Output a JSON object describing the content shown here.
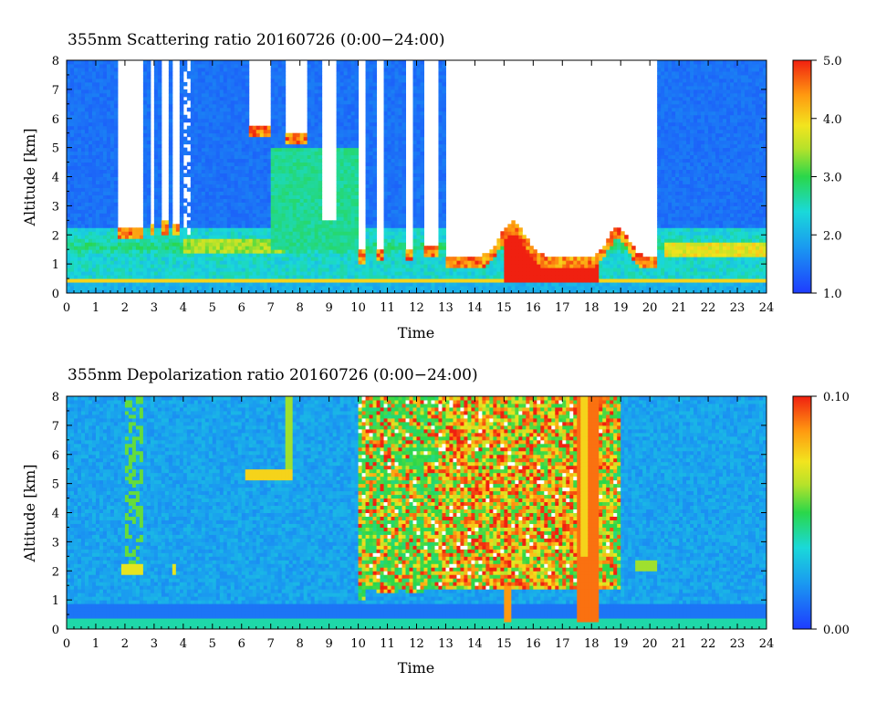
{
  "chart_data": [
    {
      "type": "heatmap",
      "title": "355nm Scattering ratio  20160726 (0:00−24:00)",
      "xlabel": "Time",
      "ylabel": "Altitude [km]",
      "xlim": [
        0,
        24
      ],
      "ylim": [
        0,
        8
      ],
      "x_ticks": [
        "0",
        "1",
        "2",
        "3",
        "4",
        "5",
        "6",
        "7",
        "8",
        "9",
        "10",
        "11",
        "12",
        "13",
        "14",
        "15",
        "16",
        "17",
        "18",
        "19",
        "20",
        "21",
        "22",
        "23",
        "24"
      ],
      "y_ticks": [
        "0",
        "1",
        "2",
        "3",
        "4",
        "5",
        "6",
        "7",
        "8"
      ],
      "colorbar": {
        "min": 1.0,
        "max": 5.0,
        "ticks": [
          "1.0",
          "2.0",
          "3.0",
          "4.0",
          "5.0"
        ]
      },
      "missing_data_color": "#ffffff",
      "regions": [
        {
          "t": [
            0,
            1.7
          ],
          "clear_below_km": 8,
          "cloud_base_km": null,
          "note": "background ~1.3-1.6, boundary layer ~2.5 below 2.2 km"
        },
        {
          "t": [
            1.7,
            3.9
          ],
          "clear_below_km": 2.0,
          "cloud_base_km": 2.0,
          "note": "mostly missing above cloud at ~2 km"
        },
        {
          "t": [
            3.9,
            6.0
          ],
          "clear_below_km": 8,
          "cloud_base_km": null,
          "note": "background ~1.5, layer ~3.5 near 1.7 km"
        },
        {
          "t": [
            6.0,
            7.1
          ],
          "clear_below_km": 5.4,
          "cloud_base_km": 5.4,
          "note": "missing above cloud at ~5.4 km"
        },
        {
          "t": [
            7.5,
            8.3
          ],
          "clear_below_km": 5.2,
          "cloud_base_km": 5.2,
          "note": "green aerosol ~2.6-3.0 between 2 and 5 km"
        },
        {
          "t": [
            10.0,
            13.0
          ],
          "clear_below_km": 1.2,
          "cloud_base_km": 1.2,
          "note": "low clouds ~1 km, missing above"
        },
        {
          "t": [
            13.0,
            20.3
          ],
          "clear_below_km": 1.0,
          "cloud_base_km": 1.0,
          "note": "missing above low cloud, values >5 near surface"
        },
        {
          "t": [
            20.3,
            24
          ],
          "clear_below_km": 8,
          "cloud_base_km": null,
          "note": "background ~1.5, elevated layer ~3.8 near 1.5 km"
        }
      ]
    },
    {
      "type": "heatmap",
      "title": "355nm Depolarization ratio  20160726 (0:00−24:00)",
      "xlabel": "Time",
      "ylabel": "Altitude [km]",
      "xlim": [
        0,
        24
      ],
      "ylim": [
        0,
        8
      ],
      "x_ticks": [
        "0",
        "1",
        "2",
        "3",
        "4",
        "5",
        "6",
        "7",
        "8",
        "9",
        "10",
        "11",
        "12",
        "13",
        "14",
        "15",
        "16",
        "17",
        "18",
        "19",
        "20",
        "21",
        "22",
        "23",
        "24"
      ],
      "y_ticks": [
        "0",
        "1",
        "2",
        "3",
        "4",
        "5",
        "6",
        "7",
        "8"
      ],
      "colorbar": {
        "min": 0.0,
        "max": 0.1,
        "ticks": [
          "0.00",
          "0.10"
        ]
      },
      "regions": [
        {
          "t": [
            0,
            24
          ],
          "value_range": [
            0.01,
            0.03
          ],
          "note": "background"
        },
        {
          "t": [
            10.0,
            19.0
          ],
          "value_range": [
            0.06,
            0.1
          ],
          "note": "high depolarization (ice cloud) between ~1.5 and 8 km"
        },
        {
          "t": [
            17.5,
            18.2
          ],
          "value_range": [
            0.08,
            0.1
          ],
          "note": "precipitation shaft reaching ~0.2 km"
        },
        {
          "t": [
            1.9,
            2.6
          ],
          "value_range": [
            0.05,
            0.08
          ],
          "note": "feature near 2 km"
        },
        {
          "t": [
            6.0,
            7.8
          ],
          "value_range": [
            0.05,
            0.09
          ],
          "note": "features near 5.3 km"
        }
      ]
    }
  ]
}
